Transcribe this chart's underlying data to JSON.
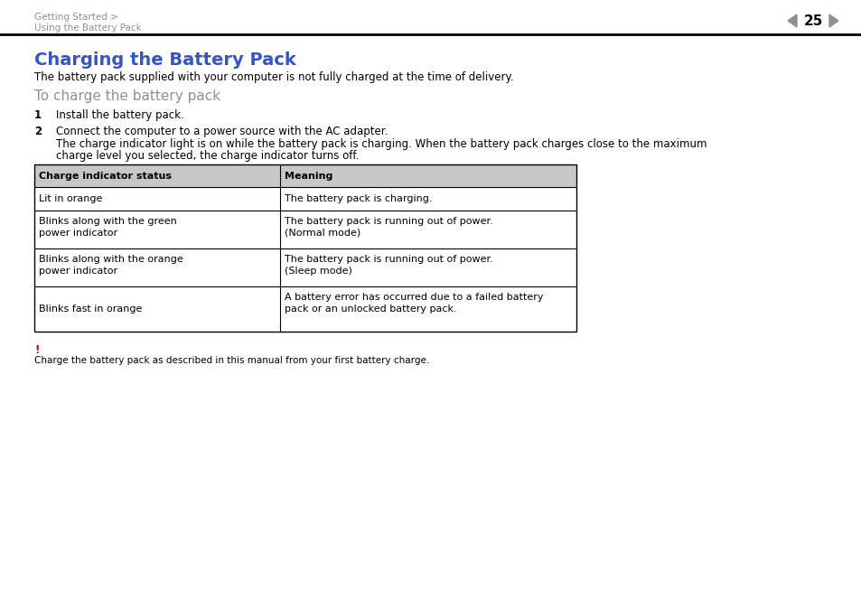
{
  "bg_color": "#ffffff",
  "breadcrumb_line1": "Getting Started >",
  "breadcrumb_line2": "Using the Battery Pack",
  "breadcrumb_color": "#909090",
  "page_number": "25",
  "page_num_color": "#000000",
  "triangle_color": "#909090",
  "title": "Charging the Battery Pack",
  "title_color": "#3355cc",
  "intro_text": "The battery pack supplied with your computer is not fully charged at the time of delivery.",
  "subtitle": "To charge the battery pack",
  "subtitle_color": "#909090",
  "step1_num": "1",
  "step1_text": "Install the battery pack.",
  "step2_num": "2",
  "step2_line1": "Connect the computer to a power source with the AC adapter.",
  "step2_line2a": "The charge indicator light is on while the battery pack is charging. When the battery pack charges close to the maximum",
  "step2_line2b": "charge level you selected, the charge indicator turns off.",
  "table_header_col1": "Charge indicator status",
  "table_header_col2": "Meaning",
  "table_header_bg": "#c8c8c8",
  "table_border_color": "#000000",
  "table_rows": [
    [
      "Lit in orange",
      "The battery pack is charging."
    ],
    [
      "Blinks along with the green\npower indicator",
      "The battery pack is running out of power.\n(Normal mode)"
    ],
    [
      "Blinks along with the orange\npower indicator",
      "The battery pack is running out of power.\n(Sleep mode)"
    ],
    [
      "Blinks fast in orange",
      "A battery error has occurred due to a failed battery\npack or an unlocked battery pack."
    ]
  ],
  "note_exclamation": "!",
  "note_exclamation_color": "#cc0000",
  "note_text": "Charge the battery pack as described in this manual from your first battery charge.",
  "line_color": "#000000",
  "text_color": "#000000",
  "font_size_title": 14,
  "font_size_body": 8.5,
  "font_size_subtitle": 11,
  "font_size_breadcrumb": 7.5,
  "font_size_page": 11,
  "font_size_table": 8.0,
  "font_size_note": 7.5
}
